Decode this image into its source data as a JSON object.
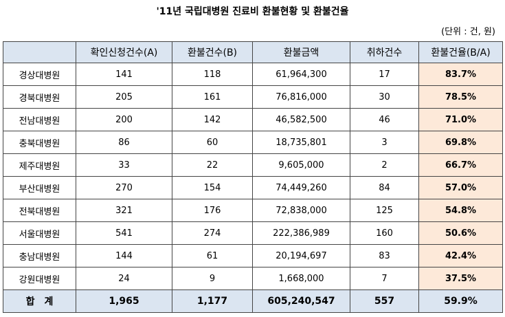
{
  "header": {
    "title": "'11년 국립대병원 진료비 환불현황 및 환불건율",
    "unit": "(단위 : 건, 원)"
  },
  "table": {
    "columns": [
      "",
      "확인신청건수(A)",
      "환불건수(B)",
      "환불금액",
      "취하건수",
      "환불건율(B/A)"
    ],
    "rows": [
      [
        "경상대병원",
        "141",
        "118",
        "61,964,300",
        "17",
        "83.7%"
      ],
      [
        "경북대병원",
        "205",
        "161",
        "76,816,000",
        "30",
        "78.5%"
      ],
      [
        "전남대병원",
        "200",
        "142",
        "46,582,500",
        "46",
        "71.0%"
      ],
      [
        "충북대병원",
        "86",
        "60",
        "18,735,801",
        "3",
        "69.8%"
      ],
      [
        "제주대병원",
        "33",
        "22",
        "9,605,000",
        "2",
        "66.7%"
      ],
      [
        "부산대병원",
        "270",
        "154",
        "74,449,260",
        "84",
        "57.0%"
      ],
      [
        "전북대병원",
        "321",
        "176",
        "72,838,000",
        "125",
        "54.8%"
      ],
      [
        "서울대병원",
        "541",
        "274",
        "222,386,989",
        "160",
        "50.6%"
      ],
      [
        "충남대병원",
        "144",
        "61",
        "20,194,697",
        "83",
        "42.4%"
      ],
      [
        "강원대병원",
        "24",
        "9",
        "1,668,000",
        "7",
        "37.5%"
      ]
    ],
    "total": [
      "합　계",
      "1,965",
      "1,177",
      "605,240,547",
      "557",
      "59.9%"
    ]
  }
}
